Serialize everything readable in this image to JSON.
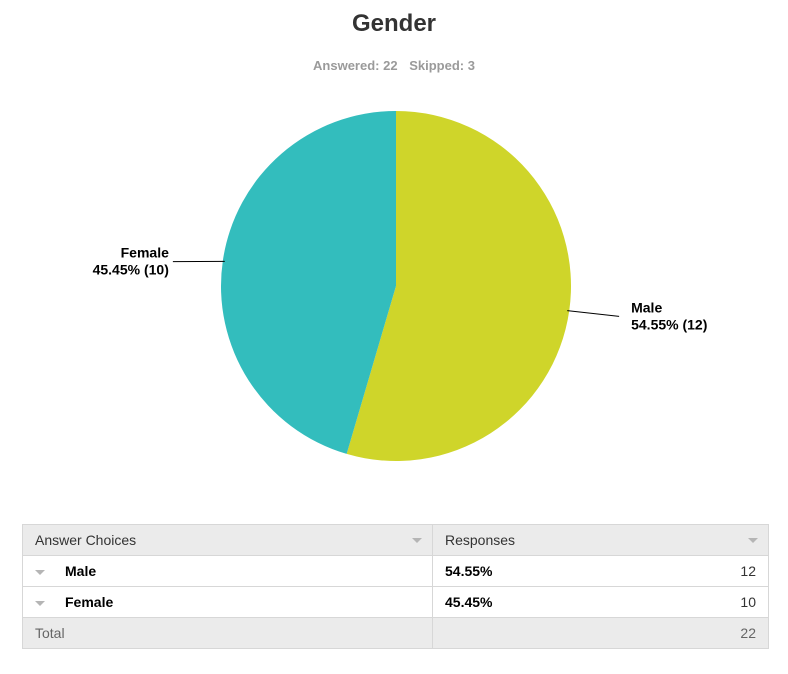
{
  "title": "Gender",
  "stats": {
    "answered": "Answered: 22",
    "skipped": "Skipped: 3"
  },
  "colors": {
    "male": "#cfd52a",
    "female": "#33bdbd"
  },
  "chart_data": {
    "type": "pie",
    "title": "Gender",
    "slices": [
      {
        "name": "Male",
        "label": "54.55% (12)",
        "percent": 54.55,
        "value": 12,
        "color": "#cfd52a"
      },
      {
        "name": "Female",
        "label": "45.45% (10)",
        "percent": 45.45,
        "value": 10,
        "color": "#33bdbd"
      }
    ]
  },
  "table": {
    "headers": [
      "Answer Choices",
      "Responses"
    ],
    "rows": [
      {
        "choice": "Male",
        "percent": "54.55%",
        "count": "12"
      },
      {
        "choice": "Female",
        "percent": "45.45%",
        "count": "10"
      }
    ],
    "total_label": "Total",
    "total_value": "22"
  }
}
